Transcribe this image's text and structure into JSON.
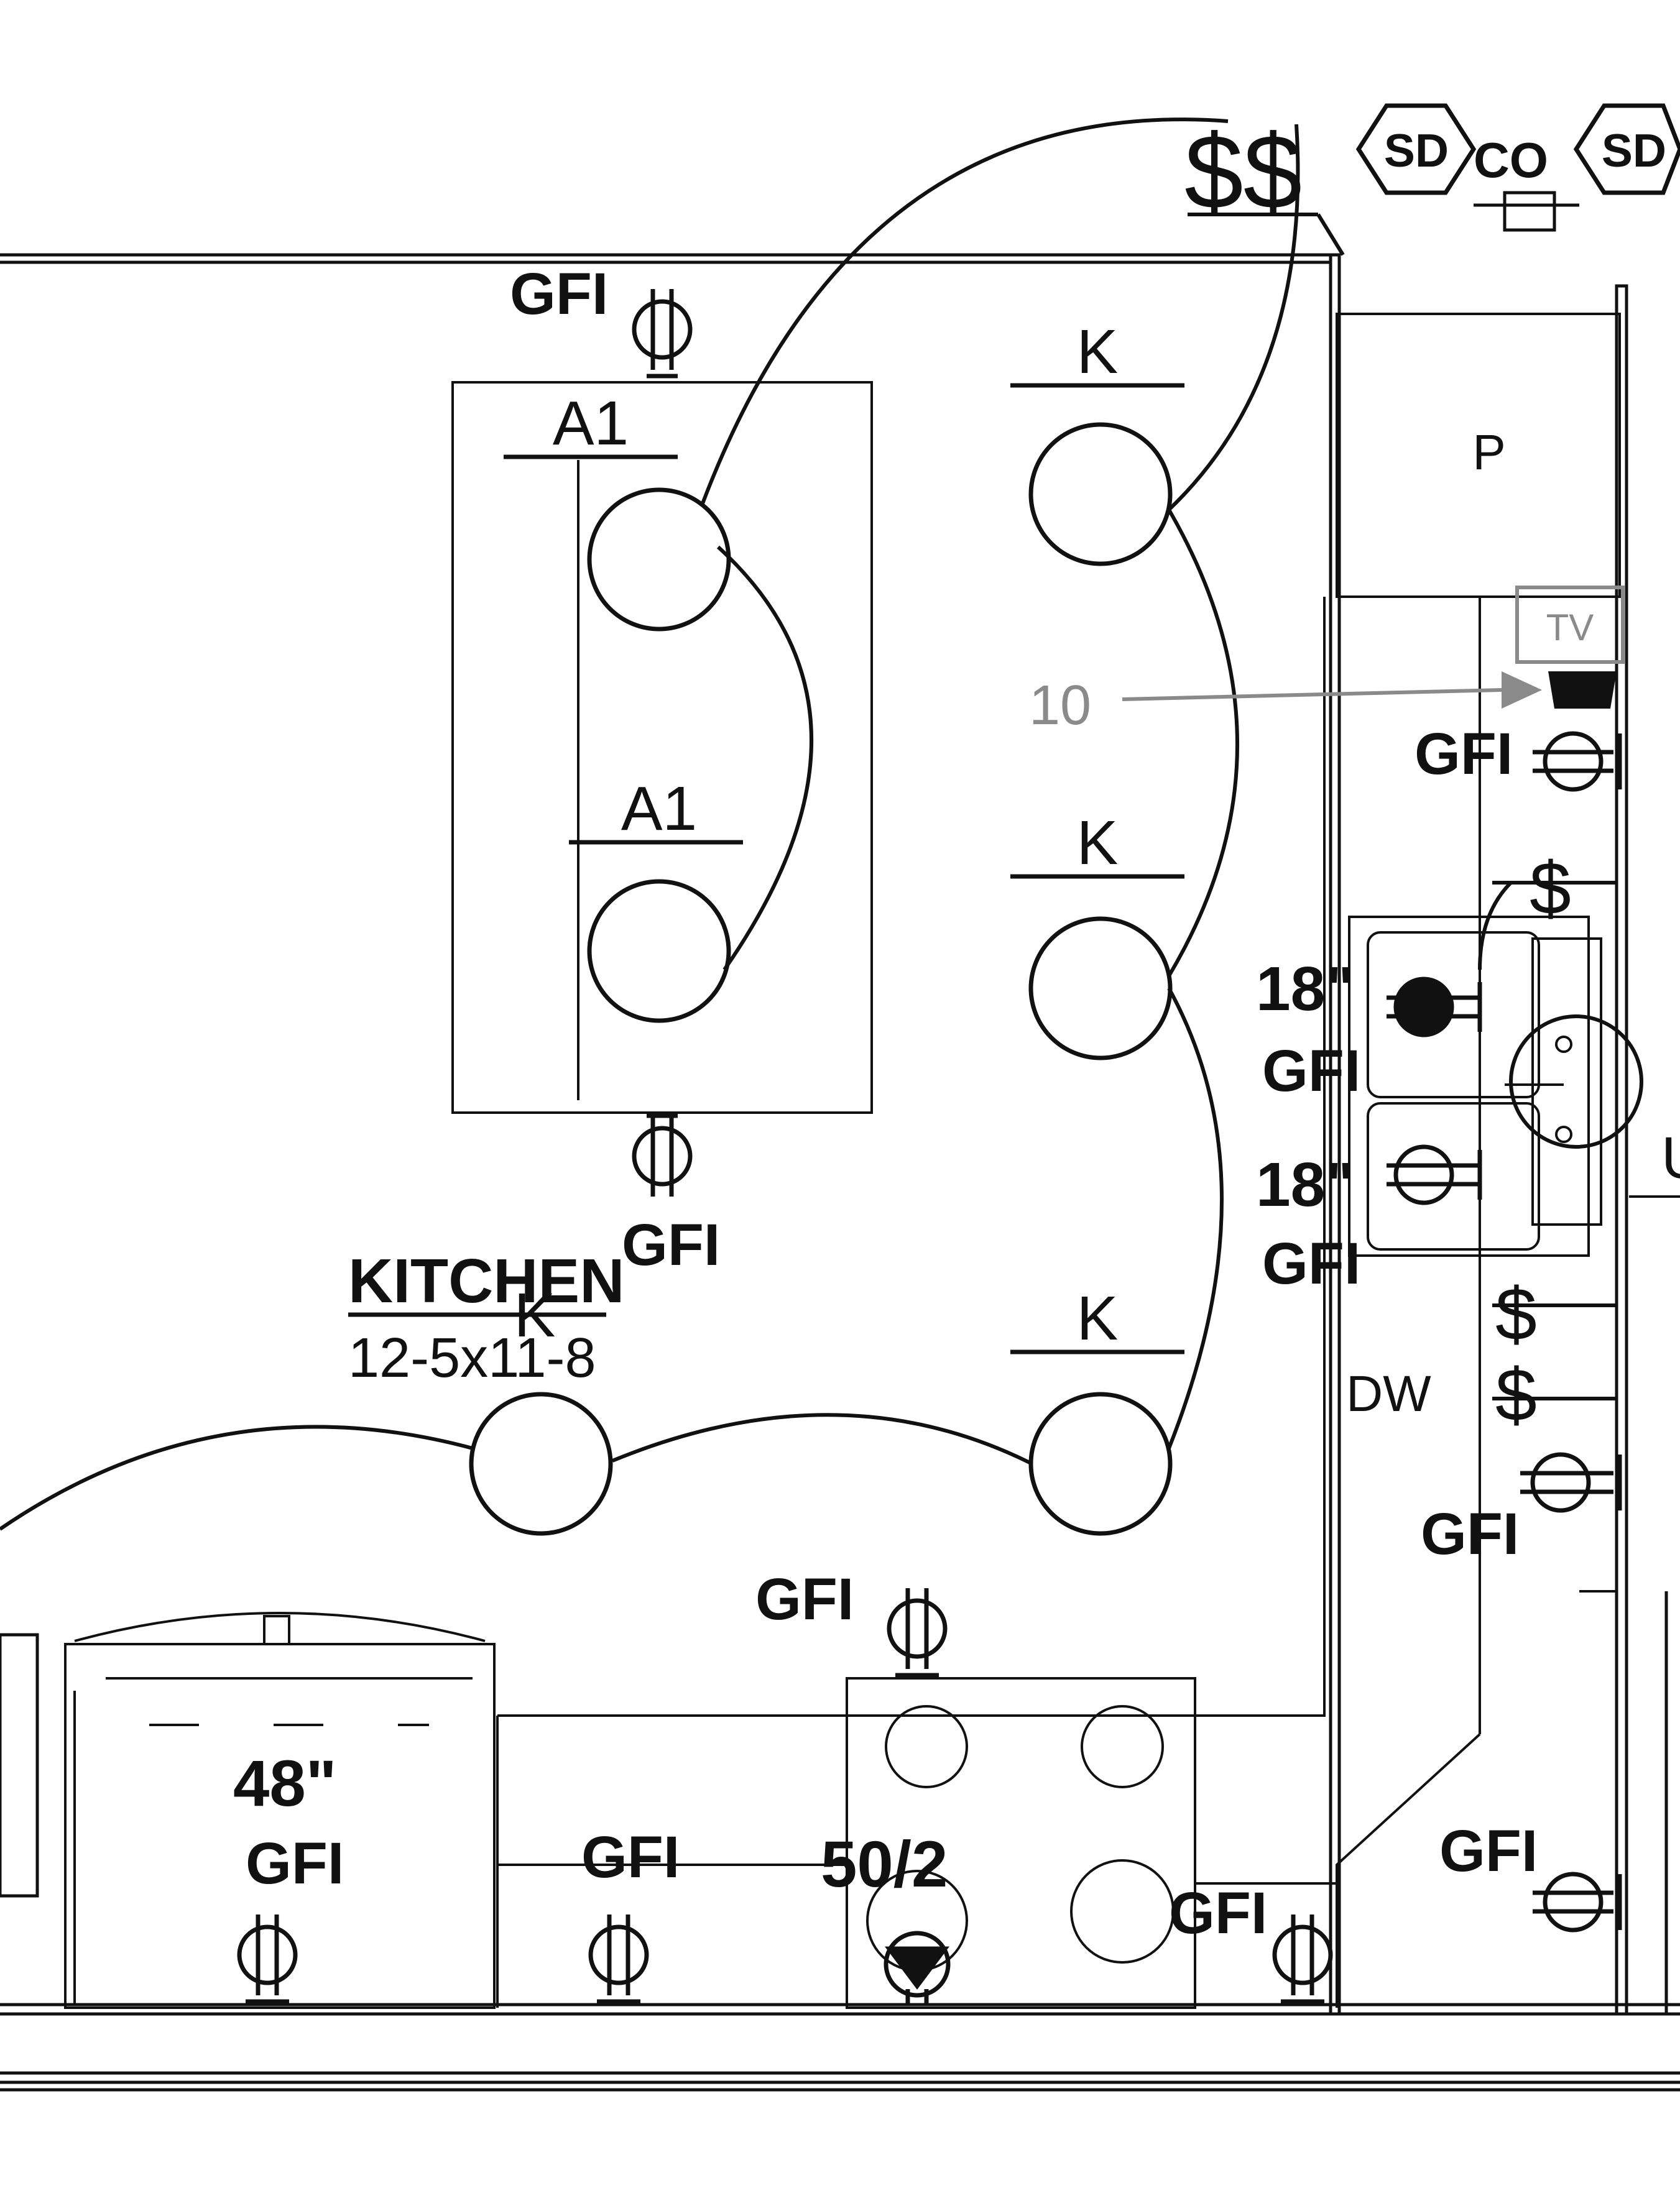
{
  "room": {
    "name": "KITCHEN",
    "dimensions": "12-5x11-8"
  },
  "switches": {
    "top": "$$",
    "sink_side": [
      "$",
      "$",
      "$"
    ]
  },
  "detectors": {
    "smoke_1": "SD",
    "smoke_2": "SD",
    "co": "CO"
  },
  "fixture_labels": {
    "island_1": "A1",
    "island_2": "A1",
    "kitchen_1": "K",
    "kitchen_2": "K",
    "kitchen_3": "K",
    "kitchen_4": "K"
  },
  "receptacle_labels": {
    "island_top": "GFI",
    "island_bottom": "GFI",
    "right_wall_upper": "GFI",
    "sink_1_height": "18\"",
    "sink_1": "GFI",
    "sink_2_height": "18\"",
    "sink_2": "GFI",
    "right_wall_lower": "GFI",
    "range_top": "GFI",
    "fridge_height": "48\"",
    "fridge": "GFI",
    "counter_left": "GFI",
    "range_circuit": "50/2",
    "counter_right": "GFI",
    "corner": "GFI"
  },
  "appliances": {
    "pantry": "P",
    "dishwasher": "DW",
    "partial_label": "U"
  },
  "annotation": {
    "tv_box": "TV",
    "callout_number": "10"
  },
  "colors": {
    "ink": "#111111",
    "annotation_gray": "#8a8a8a",
    "background": "#ffffff"
  }
}
